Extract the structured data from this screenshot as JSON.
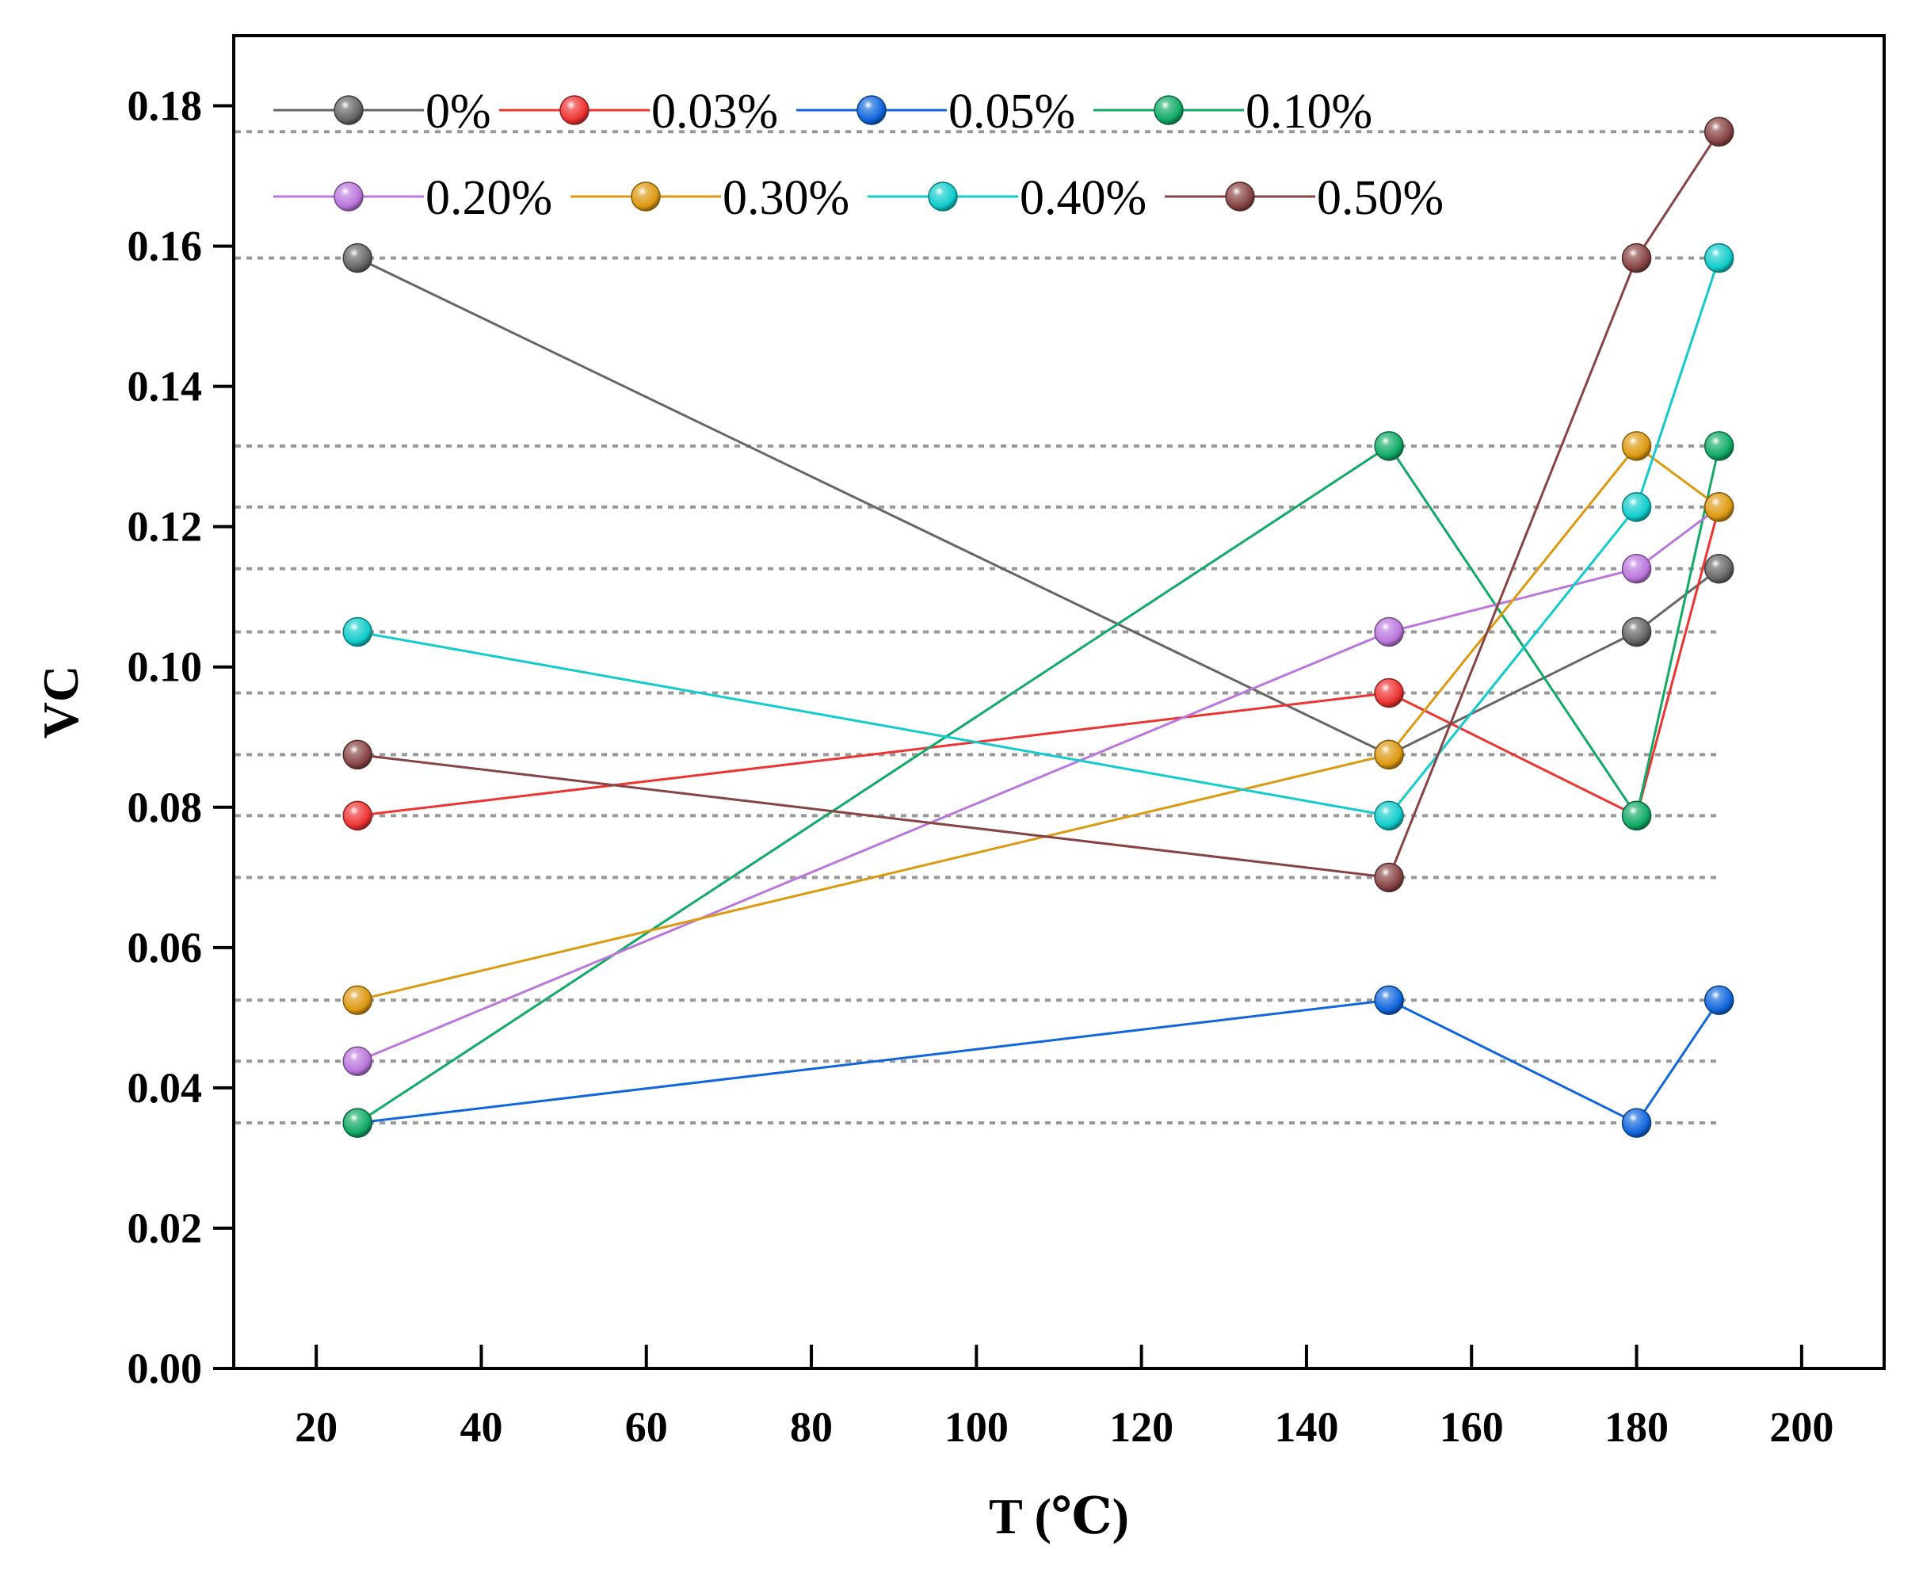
{
  "chart_data": {
    "type": "line",
    "xlabel": "T (℃)",
    "ylabel": "VC",
    "xlim": [
      10,
      210
    ],
    "ylim": [
      0,
      0.19
    ],
    "x_ticks": [
      20,
      40,
      60,
      80,
      100,
      120,
      140,
      160,
      180,
      200
    ],
    "x_tick_labels": [
      "20",
      "40",
      "60",
      "80",
      "100",
      "120",
      "140",
      "160",
      "180",
      "200"
    ],
    "y_ticks": [
      0,
      0.02,
      0.04,
      0.06,
      0.08,
      0.1,
      0.12,
      0.14,
      0.16,
      0.18
    ],
    "y_tick_labels": [
      "0.00",
      "0.02",
      "0.04",
      "0.06",
      "0.08",
      "0.10",
      "0.12",
      "0.14",
      "0.16",
      "0.18"
    ],
    "grid": "dotted horizontal reference lines at the data values",
    "legend_position": "top-left",
    "x": [
      25,
      150,
      180,
      190
    ],
    "series": [
      {
        "name": "0%",
        "color": "#666666",
        "values": [
          0.1583,
          0.0875,
          0.105,
          0.114
        ]
      },
      {
        "name": "0.03%",
        "color": "#ee3333",
        "values": [
          0.0788,
          0.0963,
          0.0788,
          0.1228
        ]
      },
      {
        "name": "0.05%",
        "color": "#1166dd",
        "values": [
          0.035,
          0.0525,
          0.035,
          0.0525
        ]
      },
      {
        "name": "0.10%",
        "color": "#11aa66",
        "values": [
          0.035,
          0.1315,
          0.0788,
          0.1315
        ]
      },
      {
        "name": "0.20%",
        "color": "#bb77dd",
        "values": [
          0.0438,
          0.105,
          0.114,
          0.1228
        ]
      },
      {
        "name": "0.30%",
        "color": "#dd9911",
        "values": [
          0.0525,
          0.0875,
          0.1315,
          0.1228
        ]
      },
      {
        "name": "0.40%",
        "color": "#11cccc",
        "values": [
          0.105,
          0.0788,
          0.1228,
          0.1583
        ]
      },
      {
        "name": "0.50%",
        "color": "#884444",
        "values": [
          0.0875,
          0.07,
          0.1583,
          0.1763
        ]
      }
    ],
    "reference_lines": [
      0.1763,
      0.1583,
      0.1315,
      0.1228,
      0.114,
      0.105,
      0.0963,
      0.0875,
      0.0788,
      0.07,
      0.0525,
      0.0438,
      0.035
    ]
  }
}
